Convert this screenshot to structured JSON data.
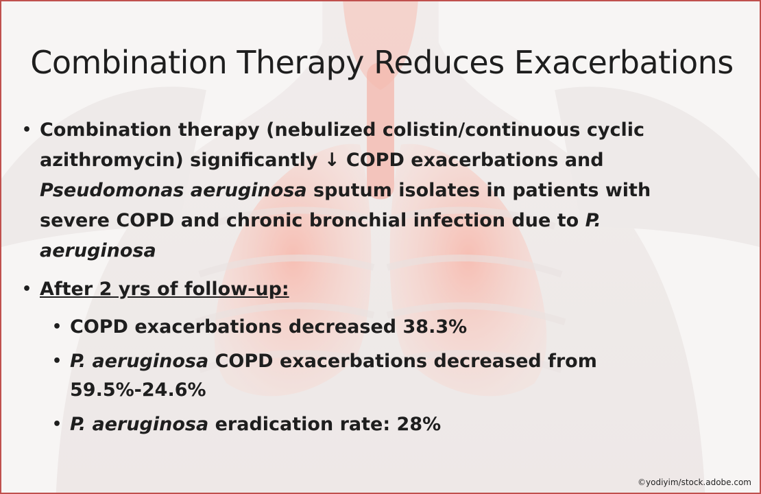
{
  "slide": {
    "title": "Combination Therapy Reduces Exacerbations",
    "bullet1": {
      "text_a": "Combination therapy (nebulized colistin/continuous cyclic azithromycin) significantly ",
      "arrow": "↓",
      "text_b": " COPD exacerbations and ",
      "italic_c": "Pseudomonas aeruginosa",
      "text_d": " sputum isolates in patients with severe COPD and chronic bronchial infection due to ",
      "italic_e": "P. aeruginosa"
    },
    "bullet2": {
      "label": "After 2 yrs of follow-up:",
      "sub1": "COPD exacerbations decreased 38.3%",
      "sub2_italic": "P. aeruginosa",
      "sub2_text": " COPD exacerbations decreased from 59.5%-24.6%",
      "sub3_italic": "P. aeruginosa",
      "sub3_text": " eradication rate: 28%"
    },
    "bullet_glyph": "•",
    "credit": "©yodiyim/stock.adobe.com"
  },
  "colors": {
    "border": "#c0504d",
    "background": "#f3efee",
    "lung": "#f2a89a",
    "text": "#1e1e1e"
  }
}
